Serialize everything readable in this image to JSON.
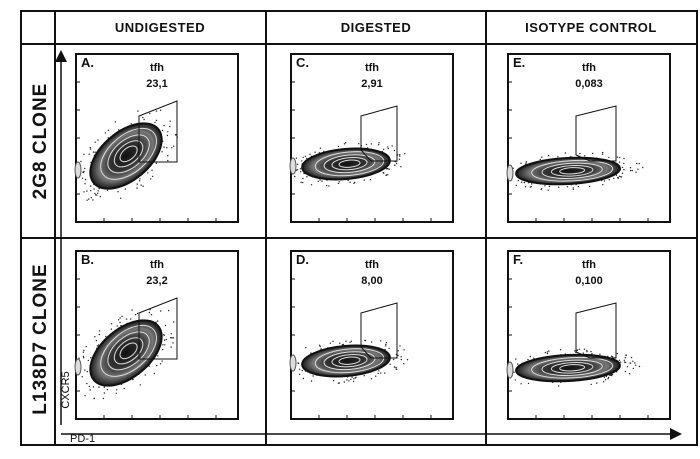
{
  "columns": [
    "UNDIGESTED",
    "DIGESTED",
    "ISOTYPE CONTROL"
  ],
  "rows": [
    "2G8 CLONE",
    "L138D7 CLONE"
  ],
  "panels": [
    {
      "letter": "A.",
      "gate": "tfh",
      "value": "23,1",
      "style": "tilted"
    },
    {
      "letter": "C.",
      "gate": "tfh",
      "value": "2,91",
      "style": "flat"
    },
    {
      "letter": "E.",
      "gate": "tfh",
      "value": "0,083",
      "style": "wide"
    },
    {
      "letter": "B.",
      "gate": "tfh",
      "value": "23,2",
      "style": "tilted"
    },
    {
      "letter": "D.",
      "gate": "tfh",
      "value": "8,00",
      "style": "flat"
    },
    {
      "letter": "F.",
      "gate": "tfh",
      "value": "0,100",
      "style": "wide"
    }
  ],
  "axes": {
    "y_label": "CXCR5",
    "x_label": "PD-1"
  }
}
